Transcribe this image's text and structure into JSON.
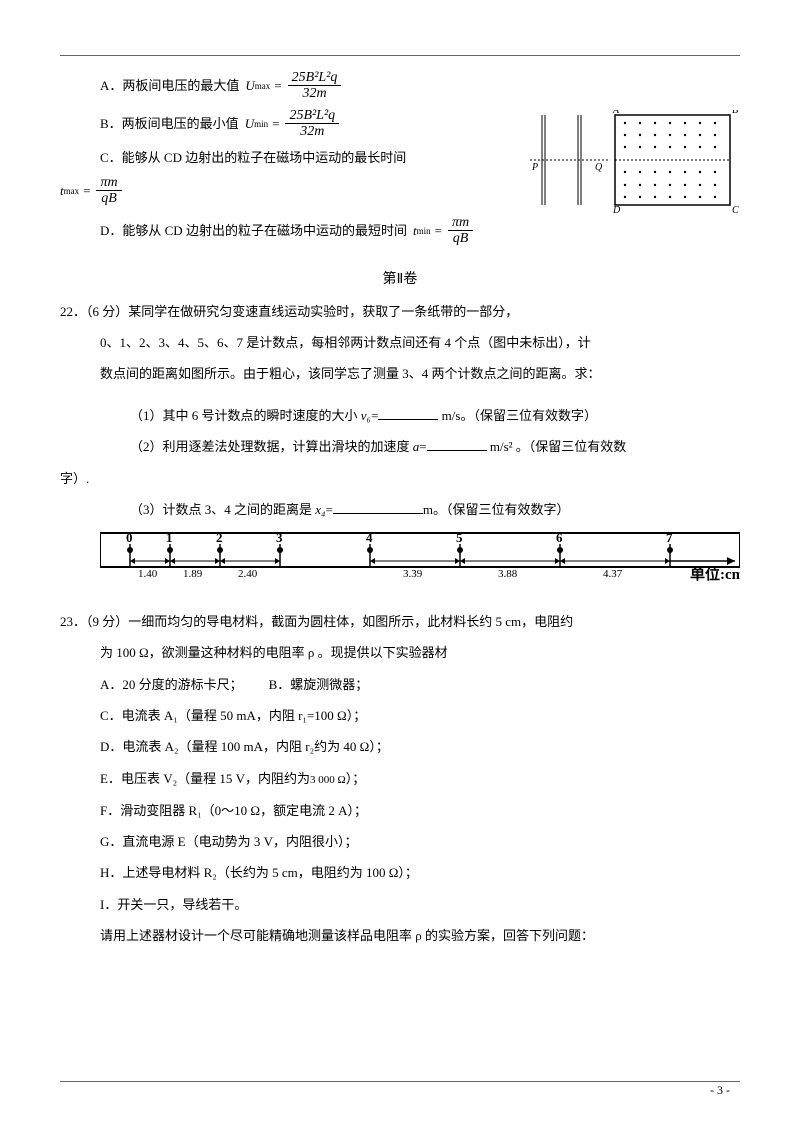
{
  "topOptions": {
    "a": {
      "label": "A．",
      "text": "两板间电压的最大值",
      "var": "U",
      "sub": "max",
      "eq": "=",
      "numTop": "25B²L²q",
      "numBot": "32m"
    },
    "b": {
      "label": "B．",
      "text": "两板间电压的最小值",
      "var": "U",
      "sub": "min",
      "eq": "=",
      "numTop": "25B²L²q",
      "numBot": "32m"
    },
    "c": {
      "label": "C．",
      "text": "能够从 CD 边射出的粒子在磁场中运动的最长时间",
      "var": "t",
      "sub": "max",
      "numTop": "πm",
      "numBot": "qB"
    },
    "d": {
      "label": "D．",
      "text": "能够从 CD 边射出的粒子在磁场中运动的最短时间",
      "var": "t",
      "sub": "min",
      "numTop": "πm",
      "numBot": "qB"
    }
  },
  "sectionTitle": "第Ⅱ卷",
  "q22": {
    "prefix": "22．（6 分）某同学在做研究匀变速直线运动实验时，获取了一条纸带的一部分，",
    "line2": "0、1、2、3、4、5、6、7 是计数点，每相邻两计数点间还有 4 个点（图中未标出），计",
    "line3": "数点间的距离如图所示。由于粗心，该同学忘了测量 3、4 两个计数点之间的距离。求：",
    "sub1a": "（1）其中 6 号计数点的瞬时速度的大小 ",
    "sub1var": "v₆",
    "sub1b": "=",
    "sub1unit": " m/s。（保留三位有效数字）",
    "sub2a": "（2）利用逐差法处理数据，计算出滑块的加速度 ",
    "sub2var": "a",
    "sub2b": "=",
    "sub2unit": " m/s² 。（保留三位有效数",
    "sub2end": "字）.",
    "sub3a": "（3）计数点 3、4 之间的距离是 ",
    "sub3var": "x₄",
    "sub3b": "=",
    "sub3unit": "m。（保留三位有效数字）"
  },
  "tape": {
    "points": [
      "0",
      "1",
      "2",
      "3",
      "4",
      "5",
      "6",
      "7"
    ],
    "distances": [
      "1.40",
      "1.89",
      "2.40",
      "3.39",
      "3.88",
      "4.37"
    ],
    "unit": "单位:cm"
  },
  "q23": {
    "prefix": "23．（9 分）一细而均匀的导电材料，截面为圆柱体，如图所示，此材料长约 5 cm，电阻约",
    "line2": "为 100 Ω，欲测量这种材料的电阻率 ρ 。现提供以下实验器材",
    "a": "A．20 分度的游标卡尺；",
    "bSpacer": "        ",
    "b": "B．螺旋测微器；",
    "c": "C．电流表 A₁（量程 50 mA，内阻 r₁=100 Ω）；",
    "d": "D．电流表 A₂（量程 100 mA，内阻 r₂约为 40 Ω）；",
    "e1": "E．电压表 V₂（量程 15 V，内阻约为",
    "eVal": "3 000 Ω",
    "e2": "）；",
    "f": "F．滑动变阻器 R₁（0～10 Ω，额定电流 2 A）；",
    "g": "G．直流电源 E（电动势为 3 V，内阻很小）；",
    "h": "H．上述导电材料 R₂（长约为 5 cm，电阻约为 100 Ω）；",
    "i": "I．开关一只，导线若干。",
    "last": "请用上述器材设计一个尽可能精确地测量该样品电阻率 ρ 的实验方案，回答下列问题："
  },
  "diagram": {
    "labels": {
      "A": "A",
      "B": "B",
      "C": "C",
      "D": "D",
      "P": "P",
      "Q": "Q"
    }
  },
  "pageNum": "- 3 -"
}
